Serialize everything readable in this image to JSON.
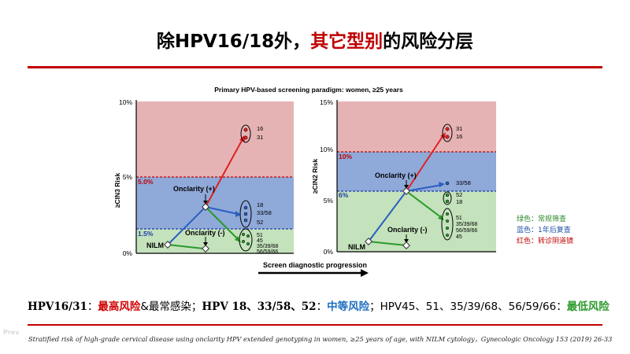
{
  "header": {
    "title_part1": "除HPV16/18外，",
    "title_part2": "其它型别",
    "title_part3": "的风险分层"
  },
  "figure": {
    "caption": "Primary HPV-based screening paradigm: women, ≥25 years",
    "xlabel": "Screen diagnostic progression",
    "left_panel": {
      "ylabel": "≥CIN3 Risk",
      "yticks": [
        "10%",
        "5%",
        "0%"
      ],
      "threshold_high": "5.0%",
      "threshold_low": "1.5%",
      "node_nilm": "NILM",
      "node_pos": "Onclarity (+)",
      "node_neg": "Onclarity (-)",
      "group_high": [
        "16",
        "31"
      ],
      "group_mid": [
        "18",
        "33/58",
        "52"
      ],
      "group_low": [
        "51",
        "45",
        "35/39/68",
        "56/59/66"
      ]
    },
    "right_panel": {
      "ylabel": "≥CIN2 Risk",
      "yticks": [
        "15%",
        "10%",
        "5%",
        "0%"
      ],
      "threshold_high": "10%",
      "threshold_low": "6%",
      "node_nilm": "NILM",
      "node_pos": "Onclarity (+)",
      "node_neg": "Onclarity (-)",
      "group_high": [
        "31",
        "16"
      ],
      "group_mid": [
        "33/58",
        "52",
        "18"
      ],
      "group_low": [
        "51",
        "35/39/68",
        "56/59/66",
        "45"
      ]
    },
    "colors": {
      "red_zone": "#e6b3b5",
      "blue_zone": "#8fa9d9",
      "green_zone": "#c4e2bc"
    }
  },
  "legend": [
    {
      "text": "绿色：常规筛查",
      "color": "#2e8b2e"
    },
    {
      "text": "蓝色：1年后复查",
      "color": "#1f4fa8"
    },
    {
      "text": "红色：转诊阴道镜",
      "color": "#c00000"
    }
  ],
  "summary": {
    "p1": "HPV16/31",
    "p2": "：",
    "p3": "最高风险",
    "p4": "&最常感染；",
    "p5": "HPV 18、33/58、52",
    "p6": "：",
    "p7": "中等风险",
    "p8": "；HPV45、51、35/39/68、56/59/66：",
    "p9": "最低风险"
  },
  "citation": "Stratified risk of high-grade cervical disease using onclarity HPV extended genotyping in women, ≥25 years of age, with NILM cytology，Gynecologic Oncology 153 (2019) 26-33",
  "ghost_text": "Prev"
}
